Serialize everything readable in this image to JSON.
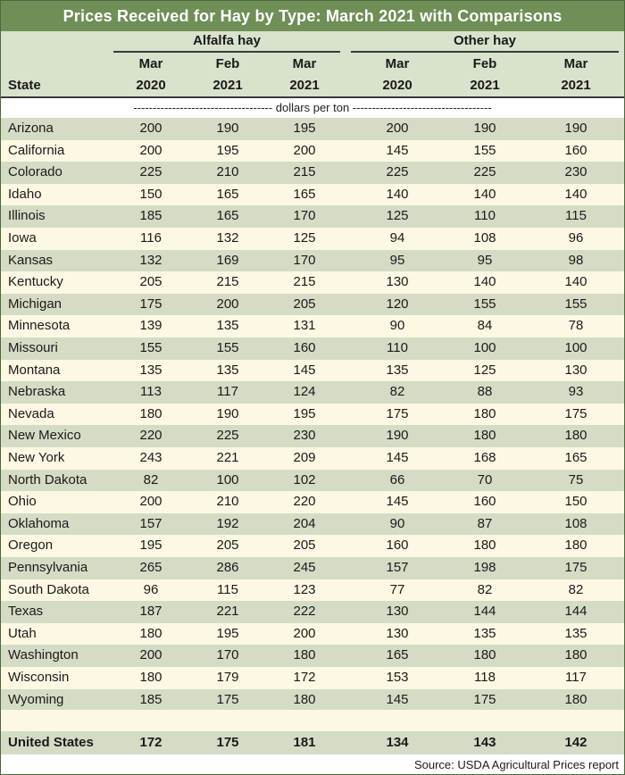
{
  "chart_data": {
    "type": "table",
    "title": "Prices Received for Hay by Type: March 2021 with Comparisons",
    "groups": [
      {
        "label": "Alfalfa hay",
        "columns": [
          "Mar 2020",
          "Feb 2021",
          "Mar 2021"
        ]
      },
      {
        "label": "Other hay",
        "columns": [
          "Mar 2020",
          "Feb 2021",
          "Mar 2021"
        ]
      }
    ],
    "state_header": "State",
    "column_heads": [
      {
        "top": "Mar",
        "bottom": "2020"
      },
      {
        "top": "Feb",
        "bottom": "2021"
      },
      {
        "top": "Mar",
        "bottom": "2021"
      },
      {
        "top": "Mar",
        "bottom": "2020"
      },
      {
        "top": "Feb",
        "bottom": "2021"
      },
      {
        "top": "Mar",
        "bottom": "2021"
      }
    ],
    "units": "------------------------------------ dollars per ton ------------------------------------",
    "rows": [
      {
        "state": "Arizona",
        "values": [
          200,
          190,
          195,
          200,
          190,
          190
        ]
      },
      {
        "state": "California",
        "values": [
          200,
          195,
          200,
          145,
          155,
          160
        ]
      },
      {
        "state": "Colorado",
        "values": [
          225,
          210,
          215,
          225,
          225,
          230
        ]
      },
      {
        "state": "Idaho",
        "values": [
          150,
          165,
          165,
          140,
          140,
          140
        ]
      },
      {
        "state": "Illinois",
        "values": [
          185,
          165,
          170,
          125,
          110,
          115
        ]
      },
      {
        "state": "Iowa",
        "values": [
          116,
          132,
          125,
          94,
          108,
          96
        ]
      },
      {
        "state": "Kansas",
        "values": [
          132,
          169,
          170,
          95,
          95,
          98
        ]
      },
      {
        "state": "Kentucky",
        "values": [
          205,
          215,
          215,
          130,
          140,
          140
        ]
      },
      {
        "state": "Michigan",
        "values": [
          175,
          200,
          205,
          120,
          155,
          155
        ]
      },
      {
        "state": "Minnesota",
        "values": [
          139,
          135,
          131,
          90,
          84,
          78
        ]
      },
      {
        "state": "Missouri",
        "values": [
          155,
          155,
          160,
          110,
          100,
          100
        ]
      },
      {
        "state": "Montana",
        "values": [
          135,
          135,
          145,
          135,
          125,
          130
        ]
      },
      {
        "state": "Nebraska",
        "values": [
          113,
          117,
          124,
          82,
          88,
          93
        ]
      },
      {
        "state": "Nevada",
        "values": [
          180,
          190,
          195,
          175,
          180,
          175
        ]
      },
      {
        "state": "New Mexico",
        "values": [
          220,
          225,
          230,
          190,
          180,
          180
        ]
      },
      {
        "state": "New York",
        "values": [
          243,
          221,
          209,
          145,
          168,
          165
        ]
      },
      {
        "state": "North Dakota",
        "values": [
          82,
          100,
          102,
          66,
          70,
          75
        ]
      },
      {
        "state": "Ohio",
        "values": [
          200,
          210,
          220,
          145,
          160,
          150
        ]
      },
      {
        "state": "Oklahoma",
        "values": [
          157,
          192,
          204,
          90,
          87,
          108
        ]
      },
      {
        "state": "Oregon",
        "values": [
          195,
          205,
          205,
          160,
          180,
          180
        ]
      },
      {
        "state": "Pennsylvania",
        "values": [
          265,
          286,
          245,
          157,
          198,
          175
        ]
      },
      {
        "state": "South Dakota",
        "values": [
          96,
          115,
          123,
          77,
          82,
          82
        ]
      },
      {
        "state": "Texas",
        "values": [
          187,
          221,
          222,
          130,
          144,
          144
        ]
      },
      {
        "state": "Utah",
        "values": [
          180,
          195,
          200,
          130,
          135,
          135
        ]
      },
      {
        "state": "Washington",
        "values": [
          200,
          170,
          180,
          165,
          180,
          180
        ]
      },
      {
        "state": "Wisconsin",
        "values": [
          180,
          179,
          172,
          153,
          118,
          117
        ]
      },
      {
        "state": "Wyoming",
        "values": [
          185,
          175,
          180,
          145,
          175,
          180
        ]
      }
    ],
    "total_row": {
      "state": "United States",
      "values": [
        172,
        175,
        181,
        134,
        143,
        142
      ]
    },
    "source": "Source: USDA Agricultural Prices report"
  },
  "colors": {
    "title_bg": "#6f8f57",
    "header_bg": "#d9e2cc",
    "band_a": "#d4dcc6",
    "band_b": "#fdf8e3"
  }
}
